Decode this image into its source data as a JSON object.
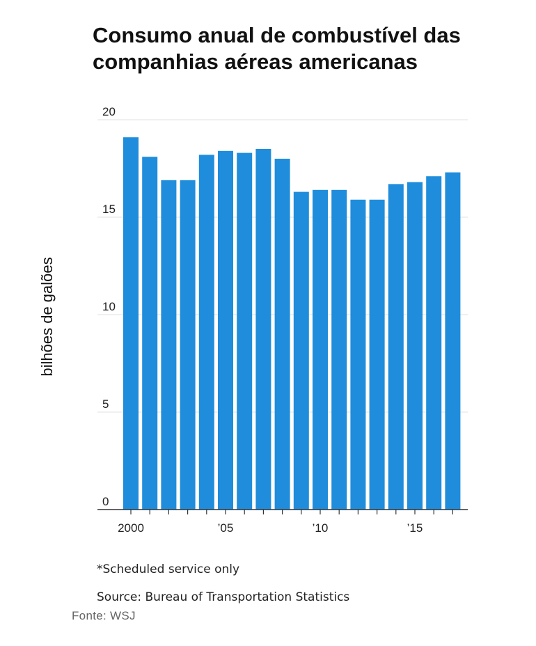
{
  "chart_data": {
    "type": "bar",
    "title": "Consumo anual de combustível das companhias aéreas americanas",
    "ylabel": "bilhões de galões",
    "xlabel": "",
    "ylim": [
      0,
      20
    ],
    "yticks": [
      0,
      5,
      10,
      15,
      20
    ],
    "grid": true,
    "categories": [
      "2000",
      "2001",
      "2002",
      "2003",
      "2004",
      "2005",
      "2006",
      "2007",
      "2008",
      "2009",
      "2010",
      "2011",
      "2012",
      "2013",
      "2014",
      "2015",
      "2016",
      "2017"
    ],
    "xtick_labels": [
      {
        "year": "2000",
        "label": "2000"
      },
      {
        "year": "2005",
        "label": "’05"
      },
      {
        "year": "2010",
        "label": "’10"
      },
      {
        "year": "2015",
        "label": "’15"
      }
    ],
    "values": [
      19.1,
      18.1,
      16.9,
      16.9,
      18.2,
      18.4,
      18.3,
      18.5,
      18.0,
      16.3,
      16.4,
      16.4,
      15.9,
      15.9,
      16.7,
      16.8,
      17.1,
      17.3
    ],
    "bar_color": "#1f8ddb",
    "note": "*Scheduled service only",
    "source": "Source: Bureau of Transportation Statistics"
  },
  "credit": "Fonte:  WSJ"
}
